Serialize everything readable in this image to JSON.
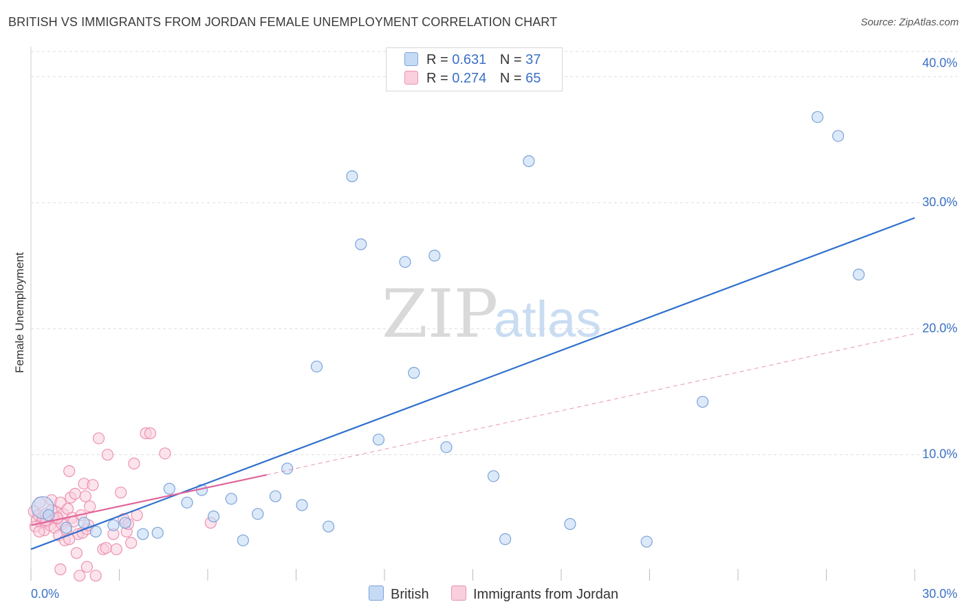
{
  "header": {
    "title": "BRITISH VS IMMIGRANTS FROM JORDAN FEMALE UNEMPLOYMENT CORRELATION CHART",
    "source": "Source: ZipAtlas.com"
  },
  "legend": {
    "r_label": "R =",
    "n_label": "N =",
    "british": {
      "r": "0.631",
      "n": "37"
    },
    "jordan": {
      "r": "0.274",
      "n": "65"
    }
  },
  "watermark": {
    "zip": "ZIP",
    "atlas": "atlas"
  },
  "colors": {
    "british_fill": "#c5daf5",
    "british_stroke": "#7aa3d9",
    "british_line": "#2e6fcc",
    "jordan_fill": "#f9cedd",
    "jordan_stroke": "#ec91b0",
    "jordan_line": "#e0649a",
    "tick_label": "#3a70c6",
    "grid": "#dddddd"
  },
  "chart_data": {
    "type": "scatter",
    "title": "BRITISH VS IMMIGRANTS FROM JORDAN FEMALE UNEMPLOYMENT CORRELATION CHART",
    "xlabel": "",
    "ylabel": "Female Unemployment",
    "xlim": [
      0,
      30
    ],
    "ylim": [
      0,
      42
    ],
    "x_tick_labels": [
      "0.0%",
      "30.0%"
    ],
    "y_ticks": [
      10,
      20,
      30,
      40
    ],
    "y_tick_labels": [
      "10.0%",
      "20.0%",
      "30.0%",
      "40.0%"
    ],
    "legend_position": "top-center",
    "series": [
      {
        "name": "British",
        "r": 0.631,
        "n": 37,
        "trend": {
          "x0": 0,
          "y0": 2.5,
          "x1": 30,
          "y1": 28.8
        },
        "points": [
          [
            0.4,
            5.8
          ],
          [
            1.2,
            4.2
          ],
          [
            2.2,
            3.9
          ],
          [
            2.8,
            4.4
          ],
          [
            3.2,
            4.6
          ],
          [
            3.8,
            3.7
          ],
          [
            4.3,
            3.8
          ],
          [
            4.7,
            7.3
          ],
          [
            5.3,
            6.2
          ],
          [
            5.8,
            7.2
          ],
          [
            6.2,
            5.1
          ],
          [
            6.8,
            6.5
          ],
          [
            7.2,
            3.2
          ],
          [
            7.7,
            5.3
          ],
          [
            8.3,
            6.7
          ],
          [
            8.7,
            8.9
          ],
          [
            9.2,
            6.0
          ],
          [
            9.7,
            17.0
          ],
          [
            10.1,
            4.3
          ],
          [
            10.9,
            32.1
          ],
          [
            11.2,
            26.7
          ],
          [
            11.8,
            11.2
          ],
          [
            12.7,
            25.3
          ],
          [
            13.0,
            16.5
          ],
          [
            13.7,
            25.8
          ],
          [
            14.1,
            10.6
          ],
          [
            15.7,
            8.3
          ],
          [
            16.1,
            3.3
          ],
          [
            16.9,
            33.3
          ],
          [
            18.3,
            4.5
          ],
          [
            20.9,
            3.1
          ],
          [
            22.8,
            14.2
          ],
          [
            26.7,
            36.8
          ],
          [
            27.4,
            35.3
          ],
          [
            28.1,
            24.3
          ],
          [
            0.6,
            5.2
          ],
          [
            1.8,
            4.6
          ]
        ]
      },
      {
        "name": "Immigrants from Jordan",
        "r": 0.274,
        "n": 65,
        "trend": {
          "x0": 0,
          "y0": 4.4,
          "x1": 8.0,
          "y1": 8.4
        },
        "trend_extension": {
          "x0": 8.0,
          "y0": 8.4,
          "x1": 30,
          "y1": 19.6
        },
        "points": [
          [
            0.1,
            5.5
          ],
          [
            0.2,
            4.8
          ],
          [
            0.25,
            5.2
          ],
          [
            0.3,
            6.2
          ],
          [
            0.35,
            4.6
          ],
          [
            0.4,
            5.0
          ],
          [
            0.45,
            4.0
          ],
          [
            0.5,
            5.3
          ],
          [
            0.55,
            4.7
          ],
          [
            0.6,
            5.1
          ],
          [
            0.65,
            4.4
          ],
          [
            0.7,
            6.4
          ],
          [
            0.75,
            5.0
          ],
          [
            0.8,
            4.2
          ],
          [
            0.85,
            5.5
          ],
          [
            0.9,
            4.9
          ],
          [
            0.95,
            3.6
          ],
          [
            1.0,
            6.2
          ],
          [
            1.05,
            4.5
          ],
          [
            1.1,
            5.3
          ],
          [
            1.15,
            3.2
          ],
          [
            1.2,
            4.0
          ],
          [
            1.25,
            5.7
          ],
          [
            1.3,
            8.7
          ],
          [
            1.35,
            6.6
          ],
          [
            1.4,
            5.0
          ],
          [
            1.45,
            4.7
          ],
          [
            1.5,
            6.9
          ],
          [
            1.55,
            2.2
          ],
          [
            1.6,
            3.7
          ],
          [
            1.65,
            0.4
          ],
          [
            1.7,
            5.2
          ],
          [
            1.75,
            3.8
          ],
          [
            1.8,
            7.7
          ],
          [
            1.85,
            6.7
          ],
          [
            1.9,
            4.1
          ],
          [
            1.95,
            4.4
          ],
          [
            2.0,
            5.9
          ],
          [
            2.1,
            7.6
          ],
          [
            2.2,
            0.4
          ],
          [
            2.3,
            11.3
          ],
          [
            2.45,
            2.5
          ],
          [
            2.55,
            2.6
          ],
          [
            2.6,
            10.0
          ],
          [
            2.8,
            3.7
          ],
          [
            2.9,
            2.5
          ],
          [
            3.05,
            7.0
          ],
          [
            3.15,
            4.9
          ],
          [
            3.25,
            3.9
          ],
          [
            3.4,
            3.0
          ],
          [
            3.5,
            9.3
          ],
          [
            3.6,
            5.2
          ],
          [
            3.9,
            11.7
          ],
          [
            4.05,
            11.7
          ],
          [
            4.55,
            10.1
          ],
          [
            6.1,
            4.6
          ],
          [
            0.15,
            4.3
          ],
          [
            0.28,
            3.9
          ],
          [
            0.5,
            4.8
          ],
          [
            0.7,
            5.6
          ],
          [
            1.0,
            0.9
          ],
          [
            1.3,
            3.3
          ],
          [
            1.9,
            1.1
          ],
          [
            3.3,
            4.5
          ],
          [
            0.9,
            5.0
          ]
        ]
      }
    ]
  },
  "bottom_legend": {
    "british": "British",
    "jordan": "Immigrants from Jordan"
  }
}
